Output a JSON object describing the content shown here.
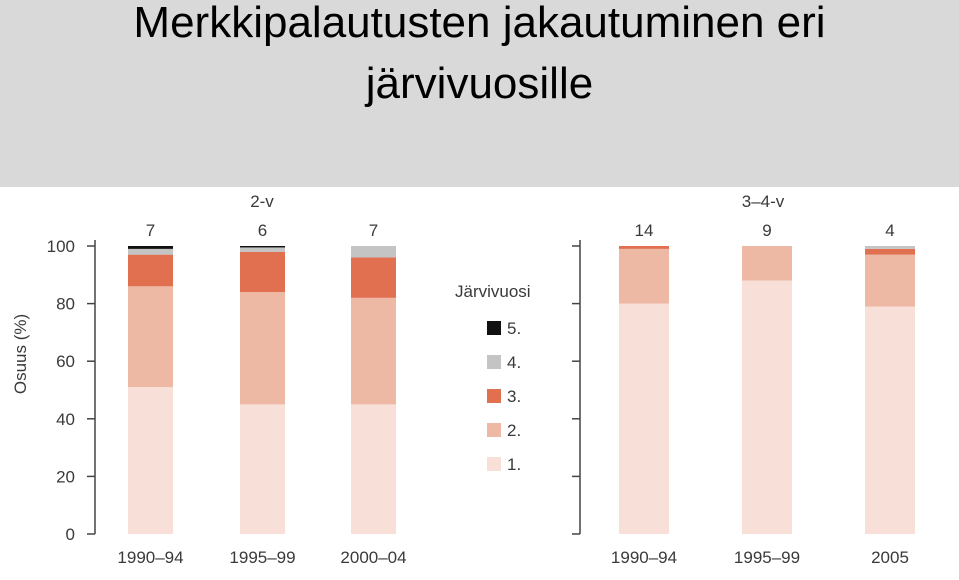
{
  "slide": {
    "title_line1": "Merkkipalautusten jakautuminen eri",
    "title_line2": "järvivuosille"
  },
  "chart_data": {
    "type": "bar",
    "stacked": true,
    "ylabel": "Osuus (%)",
    "ylim": [
      0,
      100
    ],
    "yticks": [
      "0",
      "20",
      "40",
      "60",
      "80",
      "100"
    ],
    "legend_title": "Järvivuosi",
    "legend_position": "center",
    "legend": [
      "5.",
      "4.",
      "3.",
      "2.",
      "1."
    ],
    "colors": {
      "1.": "#f8e0d8",
      "2.": "#eeb9a4",
      "3.": "#e07050",
      "4.": "#c4c4c4",
      "5.": "#111111"
    },
    "panels": [
      {
        "title": "2-v",
        "categories": [
          "1990–94",
          "1995–99",
          "2000–04"
        ],
        "n": [
          "7",
          "6",
          "7"
        ],
        "series": [
          {
            "name": "1.",
            "values": [
              51,
              45,
              45
            ]
          },
          {
            "name": "2.",
            "values": [
              35,
              39,
              37
            ]
          },
          {
            "name": "3.",
            "values": [
              11,
              14,
              14
            ]
          },
          {
            "name": "4.",
            "values": [
              2,
              1.5,
              4
            ]
          },
          {
            "name": "5.",
            "values": [
              1,
              0.5,
              0
            ]
          }
        ]
      },
      {
        "title": "3–4-v",
        "categories": [
          "1990–94",
          "1995–99",
          "2005"
        ],
        "n": [
          "14",
          "9",
          "4"
        ],
        "series": [
          {
            "name": "1.",
            "values": [
              80,
              88,
              79
            ]
          },
          {
            "name": "2.",
            "values": [
              19,
              12,
              18
            ]
          },
          {
            "name": "3.",
            "values": [
              1,
              0,
              2
            ]
          },
          {
            "name": "4.",
            "values": [
              0,
              0,
              1
            ]
          },
          {
            "name": "5.",
            "values": [
              0,
              0,
              0
            ]
          }
        ]
      }
    ]
  }
}
